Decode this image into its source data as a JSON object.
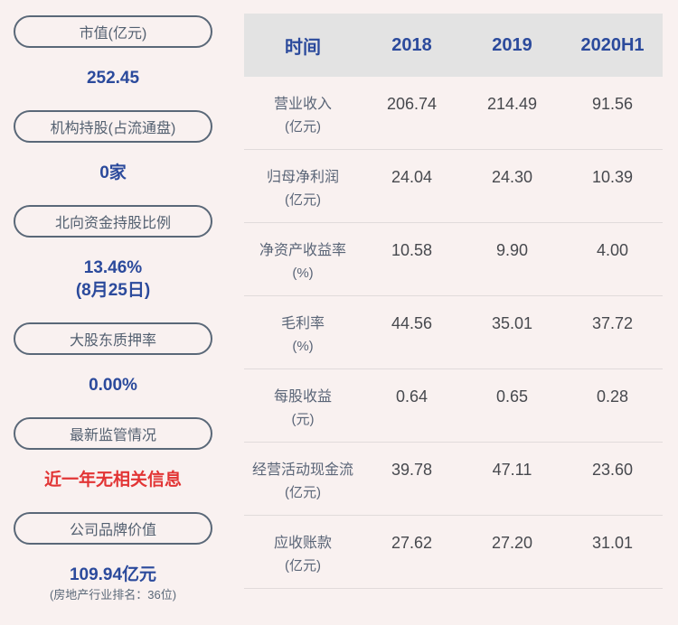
{
  "colors": {
    "background": "#f9f1f0",
    "header_bg": "#e3e3e3",
    "accent_blue": "#2b4a9c",
    "slate": "#5a6878",
    "alert_red": "#e23535",
    "divider": "#e1dbdb"
  },
  "sidebar": {
    "items": [
      {
        "label": "市值(亿元)",
        "value": "252.45"
      },
      {
        "label": "机构持股(占流通盘)",
        "value": "0家"
      },
      {
        "label": "北向资金持股比例",
        "value": "13.46%",
        "value_line2": "(8月25日)"
      },
      {
        "label": "大股东质押率",
        "value": "0.00%"
      },
      {
        "label": "最新监管情况",
        "value": "近一年无相关信息"
      },
      {
        "label": "公司品牌价值",
        "value": "109.94亿元",
        "subvalue": "(房地产行业排名：36位)"
      }
    ]
  },
  "chart_data": {
    "type": "table",
    "columns": [
      "时间",
      "2018",
      "2019",
      "2020H1"
    ],
    "rows": [
      {
        "label": "营业收入",
        "unit": "(亿元)",
        "values": [
          "206.74",
          "214.49",
          "91.56"
        ]
      },
      {
        "label": "归母净利润",
        "unit": "(亿元)",
        "values": [
          "24.04",
          "24.30",
          "10.39"
        ]
      },
      {
        "label": "净资产收益率",
        "unit": "(%)",
        "values": [
          "10.58",
          "9.90",
          "4.00"
        ]
      },
      {
        "label": "毛利率",
        "unit": "(%)",
        "values": [
          "44.56",
          "35.01",
          "37.72"
        ]
      },
      {
        "label": "每股收益",
        "unit": "(元)",
        "values": [
          "0.64",
          "0.65",
          "0.28"
        ]
      },
      {
        "label": "经营活动现金流",
        "unit": "(亿元)",
        "values": [
          "39.78",
          "47.11",
          "23.60"
        ]
      },
      {
        "label": "应收账款",
        "unit": "(亿元)",
        "values": [
          "27.62",
          "27.20",
          "31.01"
        ]
      }
    ]
  }
}
